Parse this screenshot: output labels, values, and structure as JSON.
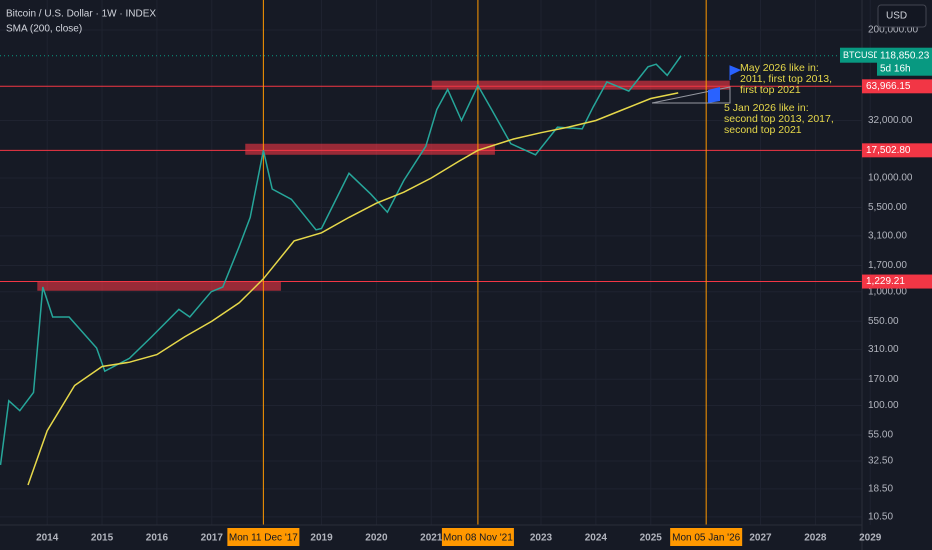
{
  "chart_data": {
    "type": "line",
    "title": "Bitcoin / U.S. Dollar · 1W · INDEX",
    "subtitle": "SMA (200, close)",
    "currency": "USD",
    "log_scale": true,
    "grid": true,
    "xlim": [
      2013.14,
      2028.85
    ],
    "xticks": [
      2014,
      2015,
      2016,
      2017,
      2019,
      2020,
      2021,
      2023,
      2024,
      2025,
      2027,
      2028,
      2029
    ],
    "ylim": [
      8.9,
      367000
    ],
    "yticks": [
      {
        "value": 200000,
        "label": "200,000.00"
      },
      {
        "value": 32000,
        "label": "32,000.00"
      },
      {
        "value": 10000,
        "label": "10,000.00"
      },
      {
        "value": 5500,
        "label": "5,500.00"
      },
      {
        "value": 3100,
        "label": "3,100.00"
      },
      {
        "value": 1700,
        "label": "1,700.00"
      },
      {
        "value": 1000,
        "label": "1,000.00"
      },
      {
        "value": 550,
        "label": "550.00"
      },
      {
        "value": 310,
        "label": "310.00"
      },
      {
        "value": 170,
        "label": "170.00"
      },
      {
        "value": 100,
        "label": "100.00"
      },
      {
        "value": 55,
        "label": "55.00"
      },
      {
        "value": 32.5,
        "label": "32.50"
      },
      {
        "value": 18.5,
        "label": "18.50"
      },
      {
        "value": 10.5,
        "label": "10.50"
      }
    ],
    "series": [
      {
        "name": "BTCUSD",
        "color": "#26a69a",
        "x": [
          2013.15,
          2013.3,
          2013.5,
          2013.75,
          2013.92,
          2014.1,
          2014.4,
          2014.9,
          2015.05,
          2015.5,
          2015.9,
          2016.4,
          2016.6,
          2016.99,
          2017.2,
          2017.5,
          2017.7,
          2017.94,
          2018.1,
          2018.45,
          2018.9,
          2019.0,
          2019.5,
          2019.9,
          2020.2,
          2020.5,
          2020.9,
          2021.1,
          2021.3,
          2021.55,
          2021.85,
          2022.1,
          2022.45,
          2022.9,
          2023.3,
          2023.75,
          2023.95,
          2024.2,
          2024.6,
          2024.95,
          2025.1,
          2025.3,
          2025.55
        ],
        "values": [
          30,
          110,
          90,
          130,
          1100,
          600,
          600,
          320,
          200,
          260,
          400,
          700,
          600,
          1000,
          1100,
          2500,
          4500,
          17500,
          8000,
          6500,
          3500,
          3600,
          11000,
          7200,
          5000,
          9500,
          19000,
          40000,
          60000,
          32000,
          65000,
          40000,
          20000,
          16000,
          28000,
          27000,
          42000,
          70000,
          58000,
          95000,
          100000,
          80000,
          118000
        ]
      },
      {
        "name": "SMA (200, close)",
        "color": "#e6d84a",
        "x": [
          2013.65,
          2014.0,
          2014.5,
          2015.0,
          2015.5,
          2016.0,
          2016.5,
          2017.0,
          2017.5,
          2017.94,
          2018.5,
          2019.0,
          2019.5,
          2020.0,
          2020.5,
          2021.0,
          2021.5,
          2021.85,
          2022.5,
          2023.0,
          2023.5,
          2024.0,
          2024.5,
          2025.0,
          2025.5
        ],
        "values": [
          20,
          60,
          150,
          220,
          240,
          280,
          400,
          550,
          800,
          1300,
          2800,
          3300,
          4500,
          6000,
          7500,
          10000,
          14000,
          17500,
          22000,
          25000,
          28000,
          32000,
          40000,
          50000,
          56000
        ]
      }
    ],
    "last_price": {
      "symbol": "BTCUSD",
      "value": 118850.23,
      "label": "118,850.23",
      "countdown": "5d 16h"
    },
    "hlines": [
      {
        "value": 63966.15,
        "label": "63,966.15"
      },
      {
        "value": 17502.8,
        "label": "17,502.80"
      },
      {
        "value": 1229.21,
        "label": "1,229.21"
      }
    ],
    "vlines": [
      {
        "value": 2017.94,
        "label": "Mon 11 Dec '17"
      },
      {
        "value": 2021.85,
        "label": "Mon 08 Nov '21"
      },
      {
        "value": 2026.01,
        "label": "Mon 05 Jan '26"
      }
    ],
    "zones": [
      {
        "x": [
          2013.82,
          2018.26
        ],
        "y": [
          1020,
          1229.21
        ]
      },
      {
        "x": [
          2017.61,
          2022.16
        ],
        "y": [
          16000,
          20000
        ]
      },
      {
        "x": [
          2021.01,
          2026.44
        ],
        "y": [
          59800,
          71700
        ]
      }
    ],
    "annotations": [
      {
        "lines": [
          "May 2026 like in:",
          "2011, first top 2013,",
          "first top 2021"
        ]
      },
      {
        "lines": [
          "5 Jan 2026 like in:",
          "second top 2013, 2017,",
          "second top 2021"
        ]
      }
    ]
  }
}
